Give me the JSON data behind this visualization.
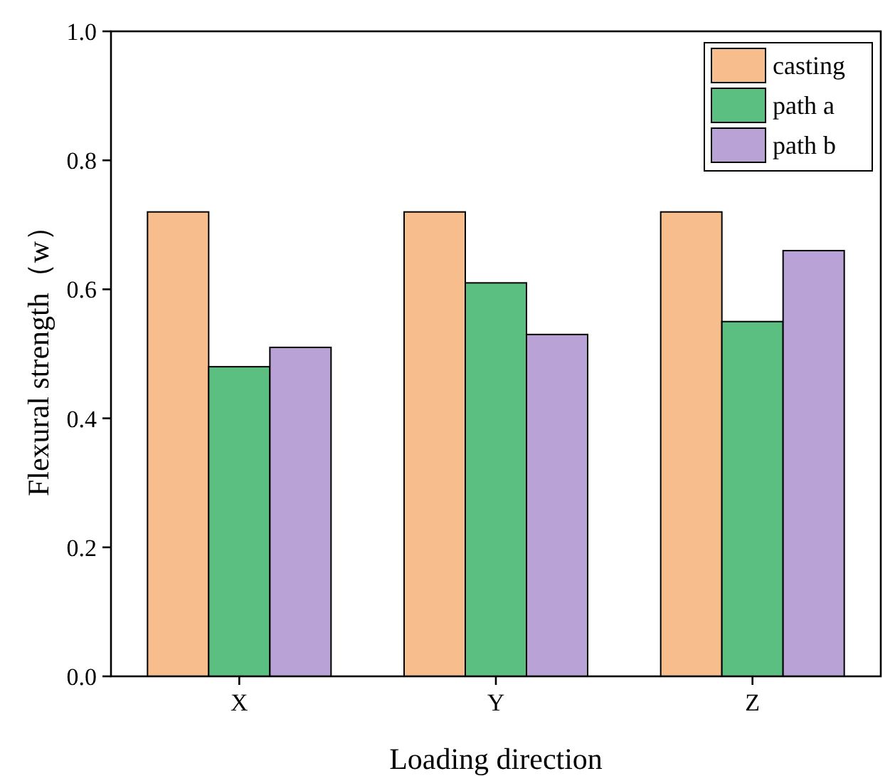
{
  "chart_data": {
    "type": "bar",
    "xlabel": "Loading direction",
    "ylabel": "Flexural strength（w）",
    "categories": [
      "X",
      "Y",
      "Z"
    ],
    "series": [
      {
        "name": "casting",
        "color": "#f7bd8c",
        "values": [
          0.72,
          0.72,
          0.72
        ]
      },
      {
        "name": "path a",
        "color": "#5cbf82",
        "values": [
          0.48,
          0.61,
          0.55
        ]
      },
      {
        "name": "path b",
        "color": "#b9a3d6",
        "values": [
          0.51,
          0.53,
          0.66
        ]
      }
    ],
    "ylim": [
      0,
      1
    ],
    "yticks": [
      {
        "value": 0,
        "label": "0.0"
      },
      {
        "value": 0.2,
        "label": "0.2"
      },
      {
        "value": 0.4,
        "label": "0.4"
      },
      {
        "value": 0.6,
        "label": "0.6"
      },
      {
        "value": 0.8,
        "label": "0.8"
      },
      {
        "value": 1,
        "label": "1.0"
      }
    ],
    "legend": "top right"
  }
}
